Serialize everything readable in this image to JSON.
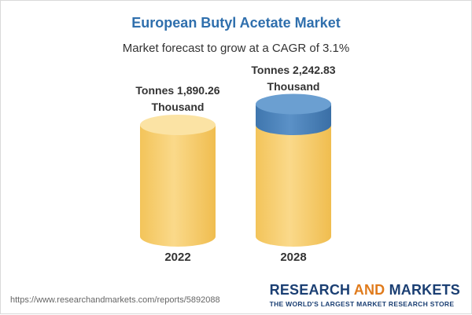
{
  "chart_data": {
    "type": "bar",
    "title": "European Butyl Acetate Market",
    "subtitle": "Market forecast to grow at a CAGR of 3.1%",
    "categories": [
      "2022",
      "2028"
    ],
    "values": [
      1890.26,
      2242.83
    ],
    "unit": "Tonnes Thousand",
    "data_labels": [
      [
        "Tonnes 1,890.26",
        "Thousand"
      ],
      [
        "Tonnes 2,242.83",
        "Thousand"
      ]
    ],
    "colors": {
      "title": "#2f6fad",
      "bar_fill": "#f7cf6e",
      "bar_top": "#fbe3a4",
      "growth_segment": "#4f86bd",
      "growth_top": "#6b9fd1"
    }
  },
  "footer": {
    "url": "https://www.researchandmarkets.com/reports/5892088",
    "brand_part1": "RESEARCH ",
    "brand_part2": "AND",
    "brand_part3": " MARKETS",
    "tagline": "THE WORLD'S LARGEST MARKET RESEARCH STORE"
  }
}
